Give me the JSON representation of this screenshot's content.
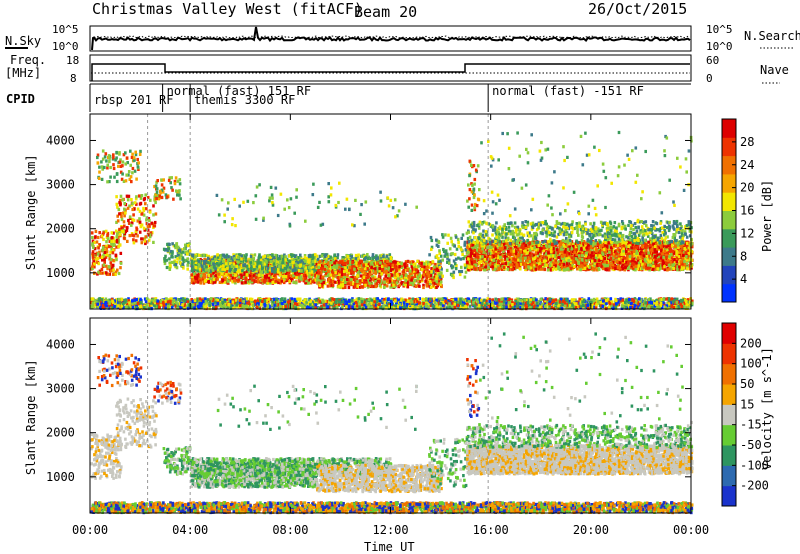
{
  "header": {
    "title": "Christmas Valley West (fitACF)",
    "beam": "Beam 20",
    "date": "26/Oct/2015"
  },
  "strip_panels": {
    "nsky_label": "N.Sky",
    "nsky_ticks": [
      "10^5",
      "10^0"
    ],
    "nsearch_label": "N.Search",
    "nsearch_ticks": [
      "10^5",
      "10^0"
    ],
    "freq_label_line1": "Freq.",
    "freq_label_line2": "[MHz]",
    "freq_ticks": [
      "18",
      "8"
    ],
    "nave_label": "Nave",
    "nave_ticks": [
      "60",
      "0"
    ],
    "cpid_label": "CPID",
    "cpid_segments": [
      {
        "label": "rbsp 201 RF",
        "start_hour": 0.0
      },
      {
        "label": "normal (fast) 151 RF",
        "start_hour": 2.9
      },
      {
        "label": "themis 3300 RF",
        "start_hour": 4.0
      },
      {
        "label": "normal (fast) -151 RF",
        "start_hour": 15.9
      }
    ]
  },
  "chart_data": [
    {
      "type": "heatmap",
      "quantity": "Power",
      "ylabel": "Slant Range [km]",
      "yticks": [
        1000,
        2000,
        3000,
        4000
      ],
      "ylim": [
        180,
        4600
      ],
      "xlim_hours": [
        0,
        24
      ],
      "colorbar_label": "Power [dB]",
      "colorbar_ticks": [
        "4",
        "8",
        "12",
        "16",
        "20",
        "24",
        "28"
      ],
      "colorbar_colors": [
        "#0033ff",
        "#2244bb",
        "#3d7a8a",
        "#3a9a5a",
        "#8ccc3c",
        "#f2e600",
        "#f5a500",
        "#f07000",
        "#ee3300",
        "#dd0000"
      ]
    },
    {
      "type": "heatmap",
      "quantity": "Velocity",
      "ylabel": "Slant Range [km]",
      "yticks": [
        1000,
        2000,
        3000,
        4000
      ],
      "ylim": [
        180,
        4600
      ],
      "xlim_hours": [
        0,
        24
      ],
      "colorbar_label": "Velocity [m s^-1]",
      "colorbar_ticks": [
        "200",
        "100",
        "50",
        "15",
        "-15",
        "-50",
        "-100",
        "-200"
      ],
      "colorbar_colors": [
        "#1a33cc",
        "#2d6ab0",
        "#2e9560",
        "#66cc33",
        "#c8c8c0",
        "#f5a500",
        "#f07000",
        "#ee3300",
        "#e00000"
      ]
    }
  ],
  "x_axis": {
    "ticks": [
      "00:00",
      "04:00",
      "08:00",
      "12:00",
      "16:00",
      "20:00",
      "00:00"
    ],
    "label": "Time UT"
  }
}
